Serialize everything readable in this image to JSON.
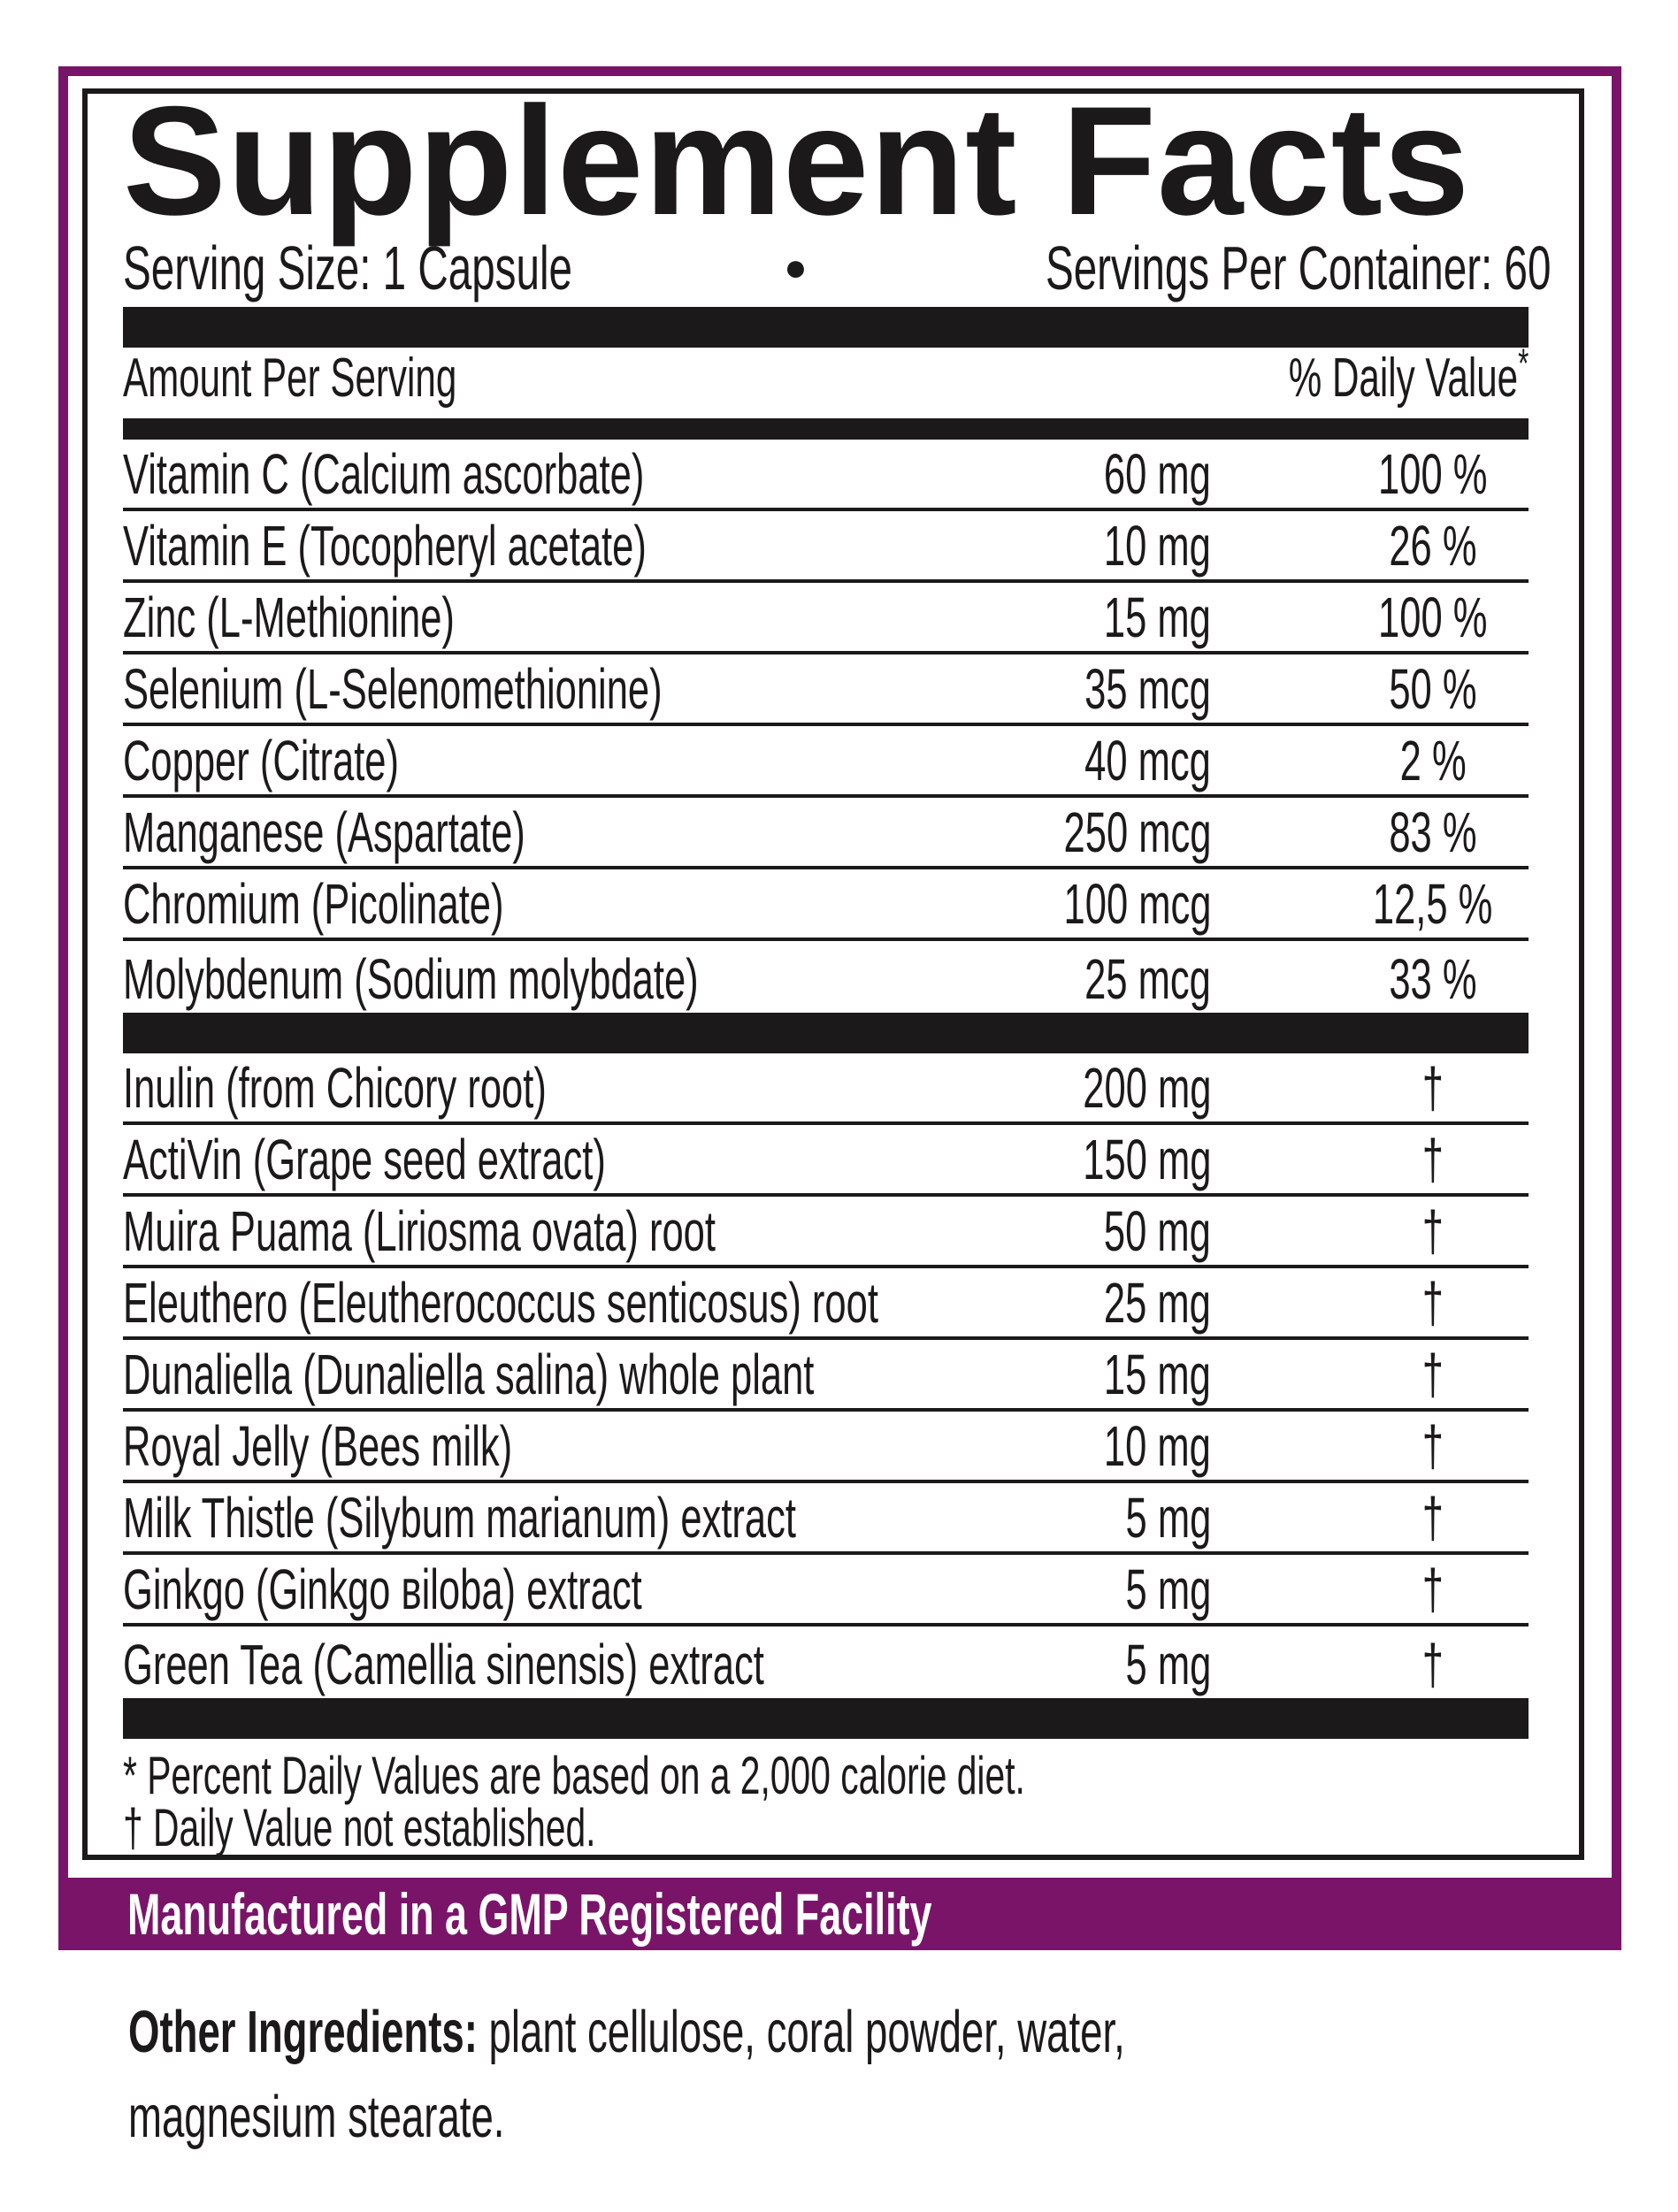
{
  "label": {
    "title": "Supplement Facts",
    "serving_size": "Serving Size: 1 Capsule",
    "bullet": "●",
    "servings_per_container": "Servings Per Container: 60",
    "header": {
      "amount": "Amount Per Serving",
      "dv": "% Daily Value",
      "dv_mark": "*"
    }
  },
  "minerals": [
    {
      "name": "Vitamin C (Calcium ascorbate)",
      "amount": "60 mg",
      "dv": "100 %"
    },
    {
      "name": "Vitamin E (Tocopheryl acetate)",
      "amount": "10 mg",
      "dv": "26 %"
    },
    {
      "name": "Zinc (L-Methionine)",
      "amount": "15 mg",
      "dv": "100 %"
    },
    {
      "name": "Selenium (L-Selenomethionine)",
      "amount": "35 mcg",
      "dv": "50 %"
    },
    {
      "name": "Copper (Citrate)",
      "amount": "40 mcg",
      "dv": "2 %"
    },
    {
      "name": "Manganese (Aspartate)",
      "amount": "250 mcg",
      "dv": "83 %"
    },
    {
      "name": "Chromium (Picolinate)",
      "amount": "100 mcg",
      "dv": "12,5 %"
    },
    {
      "name": "Molybdenum (Sodium molybdate)",
      "amount": "25 mcg",
      "dv": "33 %"
    }
  ],
  "botanicals": [
    {
      "name": "Inulin (from Chicory root)",
      "amount": "200 mg",
      "dv": "†"
    },
    {
      "name": "ActiVin (Grape seed extract)",
      "amount": "150 mg",
      "dv": "†"
    },
    {
      "name": "Muira Puama (Liriosma ovata) root",
      "amount": "50 mg",
      "dv": "†"
    },
    {
      "name": "Eleuthero (Eleutherococcus senticosus) root",
      "amount": "25 mg",
      "dv": "†"
    },
    {
      "name": "Dunaliella (Dunaliella salina) whole plant",
      "amount": "15 mg",
      "dv": "†"
    },
    {
      "name": "Royal Jelly (Bees milk)",
      "amount": "10 mg",
      "dv": "†"
    },
    {
      "name": "Milk Thistle (Silybum marianum) extract",
      "amount": "5 mg",
      "dv": "†"
    },
    {
      "name": "Ginkgo (Ginkgo вiloba) extract",
      "amount": "5 mg",
      "dv": "†"
    },
    {
      "name": "Green Tea (Camellia sinensis) extract",
      "amount": "5 mg",
      "dv": "†"
    }
  ],
  "footnotes": {
    "line1": "* Percent Daily Values are based on a 2,000 calorie diet.",
    "line2": "† Daily Value not established."
  },
  "banner": {
    "text": "Manufactured in a GMP Registered Facility"
  },
  "other_ingredients": {
    "label": "Other Ingredients:",
    "line1_rest": " plant cellulose, coral powder, water,",
    "line2": "magnesium stearate."
  },
  "colors": {
    "purple": "#7a1469",
    "black": "#1c191a"
  }
}
